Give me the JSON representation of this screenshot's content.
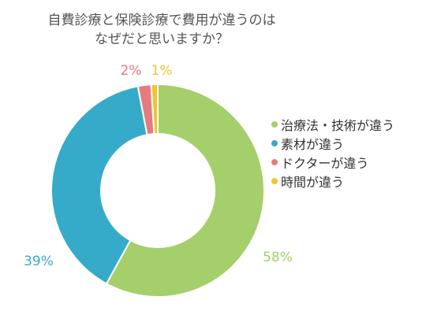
{
  "chart_data": {
    "type": "donut",
    "title_lines": [
      "自費診療と保険診療で費用が違うのは",
      "なぜだと思いますか？"
    ],
    "categories": [
      "治療法・技術が違う",
      "素材が違う",
      "ドクターが違う",
      "時間が違う"
    ],
    "values": [
      58,
      39,
      2,
      1
    ],
    "value_labels": [
      "58%",
      "39%",
      "2%",
      "1%"
    ],
    "colors": [
      "#a5cf6a",
      "#35abc9",
      "#e47c7f",
      "#efc52f"
    ],
    "legend_position": "right"
  }
}
